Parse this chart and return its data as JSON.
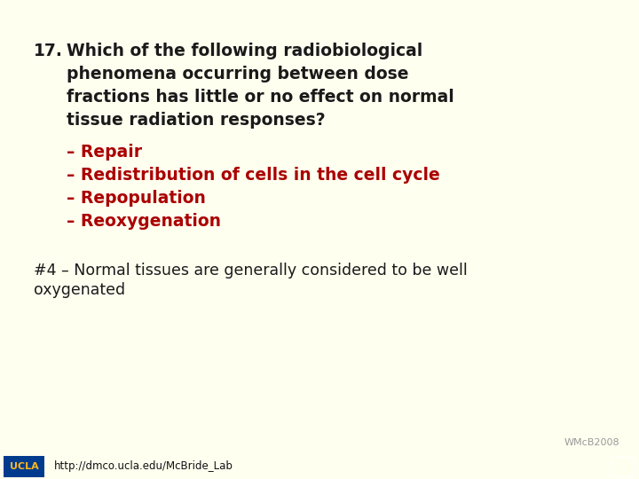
{
  "background_color": "#FFFFF0",
  "footer_color": "#6aaad4",
  "question_number": "17.",
  "question_lines": [
    "Which of the following radiobiological",
    "phenomena occurring between dose",
    "fractions has little or no effect on normal",
    "tissue radiation responses?"
  ],
  "options": [
    "– Repair",
    "– Redistribution of cells in the cell cycle",
    "– Repopulation",
    "– Reoxygenation"
  ],
  "answer_line1": "#4 – Normal tissues are generally considered to be well",
  "answer_line2": "oxygenated",
  "footer_text": "http://dmco.ucla.edu/McBride_Lab",
  "watermark": "WMcB2008",
  "question_color": "#1a1a1a",
  "option_color": "#aa0000",
  "answer_color": "#1a1a1a",
  "watermark_color": "#999999",
  "footer_text_color": "#111111",
  "ucla_bg_color": "#003B8E",
  "ucla_text_color": "#FFB81C",
  "q_fontsize": 13.5,
  "opt_fontsize": 13.5,
  "ans_fontsize": 12.5,
  "footer_fontsize": 8.5,
  "watermark_fontsize": 8.0
}
